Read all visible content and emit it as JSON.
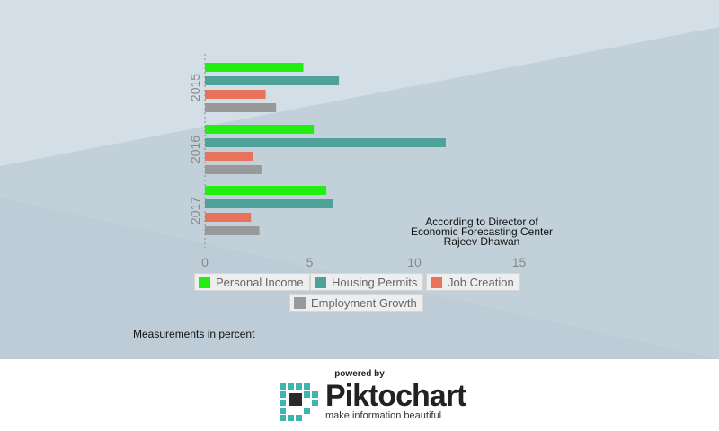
{
  "chart_data": {
    "type": "bar",
    "orientation": "horizontal",
    "categories": [
      "2015",
      "2016",
      "2017"
    ],
    "series": [
      {
        "name": "Personal Income",
        "color": "#22ee11",
        "values": [
          4.7,
          5.2,
          5.8
        ]
      },
      {
        "name": "Housing Permits",
        "color": "#4fa29a",
        "values": [
          6.4,
          11.5,
          6.1
        ]
      },
      {
        "name": "Job Creation",
        "color": "#e8735a",
        "values": [
          2.9,
          2.3,
          2.2
        ]
      },
      {
        "name": "Employment Growth",
        "color": "#999999",
        "values": [
          3.4,
          2.7,
          2.6
        ]
      }
    ],
    "xlim": [
      0,
      15
    ],
    "xticks": [
      "0",
      "5",
      "10",
      "15"
    ],
    "grid": false,
    "legend_position": "bottom"
  },
  "annotation": {
    "line1": "According to Director of",
    "line2": "Economic Forecasting Center",
    "line3": "Rajeev Dhawan"
  },
  "note": "Measurements in percent",
  "footer": {
    "powered_by": "powered by",
    "brand_a": "Pikto",
    "brand_b": "chart",
    "tagline": "make information beautiful",
    "logo_icon": "piktochart-logo-icon"
  },
  "colors": {
    "background": "#d3dee6",
    "background_band": "#c2d0da",
    "axis_text": "#888888"
  }
}
